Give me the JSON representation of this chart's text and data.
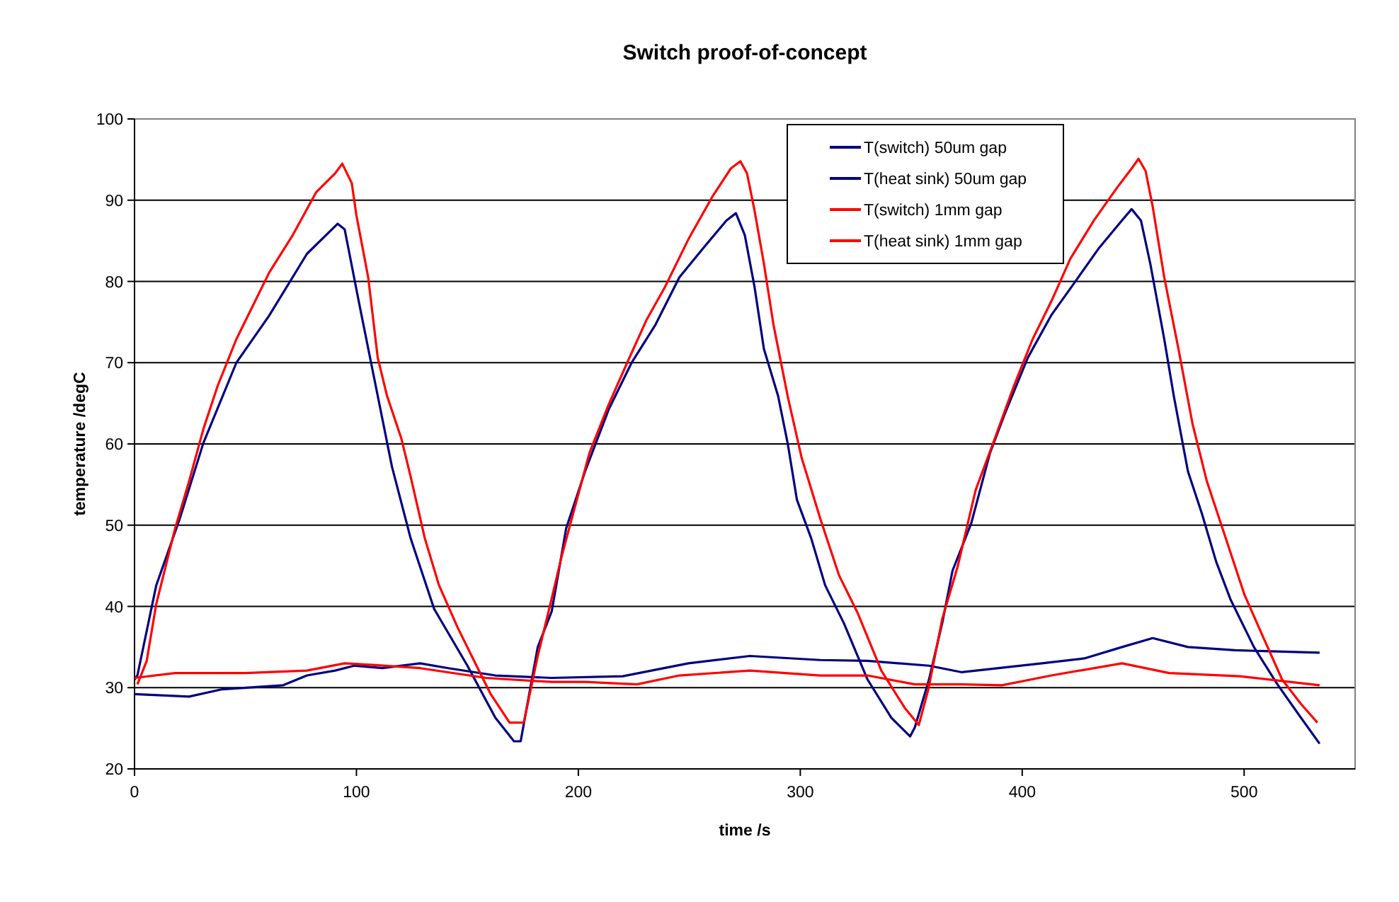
{
  "chart_data": {
    "type": "line",
    "title": "Switch proof-of-concept",
    "xlabel": "time /s",
    "ylabel": "temperature /degC",
    "xlim": [
      0,
      550
    ],
    "xticks": [
      0,
      100,
      200,
      300,
      400,
      500
    ],
    "ylim": [
      20,
      100
    ],
    "yticks": [
      20,
      30,
      40,
      50,
      60,
      70,
      80,
      90,
      100
    ],
    "grid": "y",
    "legend": "top right",
    "marker": "none",
    "line_style": "solid",
    "series": [
      {
        "name": "T(switch) 50um gap",
        "color": "#000080",
        "x": [
          0,
          1.3,
          9.8,
          20.4,
          31,
          45.9,
          60.7,
          77.7,
          91.5,
          94.7,
          101,
          109.6,
          116,
          124.4,
          135,
          150,
          162.6,
          171,
          174,
          181.7,
          188,
          194.5,
          203,
          213.6,
          224,
          234.8,
          245.5,
          256,
          266.7,
          271,
          275,
          279.4,
          283.6,
          290,
          294.3,
          298.5,
          304.9,
          311.2,
          319.7,
          330.3,
          341,
          349.5,
          351.6,
          358,
          364,
          368.6,
          377,
          385.5,
          392,
          402.5,
          413,
          423.7,
          434.3,
          444.9,
          449.3,
          453.5,
          457.7,
          464,
          468.3,
          474.7,
          481,
          487.4,
          493.8,
          504.4,
          515,
          525.6,
          534
        ],
        "values": [
          31,
          31.5,
          42.6,
          50.8,
          60.1,
          70,
          75.8,
          83.4,
          87.1,
          86.4,
          77.6,
          65.9,
          57.2,
          48.4,
          39.7,
          32.7,
          26.3,
          23.4,
          23.4,
          35,
          39.4,
          49.6,
          56.6,
          64.2,
          70,
          74.7,
          80.5,
          84,
          87.5,
          88.4,
          85.7,
          79.3,
          71.7,
          65.9,
          60.1,
          53.1,
          48.4,
          42.6,
          37.9,
          31,
          26.3,
          24,
          25.1,
          31,
          38,
          44.4,
          50.2,
          58.9,
          63.6,
          70.6,
          75.8,
          79.9,
          84,
          87.5,
          88.9,
          87.5,
          82.2,
          72.9,
          65.9,
          56.6,
          51.4,
          45.5,
          40.9,
          35,
          30.4,
          26.3,
          23.1
        ]
      },
      {
        "name": "T(heat sink) 50um gap",
        "color": "#000080",
        "x": [
          0,
          24.6,
          39.5,
          67,
          77.7,
          90.4,
          99,
          111.7,
          128.7,
          141.4,
          162.6,
          188,
          220,
          249.6,
          277.3,
          309,
          330.3,
          358,
          372.8,
          408.9,
          428,
          445,
          458.8,
          474.7,
          495.9,
          534
        ],
        "values": [
          29.2,
          28.9,
          29.8,
          30.3,
          31.5,
          32.1,
          32.7,
          32.4,
          33,
          32.4,
          31.5,
          31.2,
          31.4,
          33,
          33.9,
          33.4,
          33.3,
          32.7,
          31.9,
          33,
          33.6,
          35,
          36.1,
          35,
          34.6,
          34.3
        ]
      },
      {
        "name": "T(switch) 1mm gap",
        "color": "#ff0000",
        "x": [
          1.3,
          5.5,
          9.8,
          18.3,
          24.6,
          31,
          37.4,
          45.9,
          54.4,
          60.7,
          71.3,
          81.9,
          90.4,
          93.6,
          97.9,
          100,
          105.3,
          109.6,
          113.8,
          120.2,
          124.4,
          130.8,
          137.2,
          145.6,
          154.1,
          160.5,
          169,
          175.4,
          181.7,
          188,
          192.4,
          198.7,
          205,
          213.6,
          222,
          230.6,
          239,
          249.6,
          260.3,
          268.7,
          273,
          276,
          279.4,
          283.6,
          287.9,
          294.3,
          300.6,
          309,
          317.5,
          326,
          336.5,
          347.1,
          353.4,
          357.7,
          364,
          370.9,
          379,
          387.7,
          396.2,
          404.7,
          413.2,
          421.7,
          432.3,
          442.9,
          449.3,
          452.4,
          455.6,
          458.8,
          464,
          470.4,
          476.8,
          483.2,
          491.7,
          500.2,
          508.6,
          517.1,
          525.6,
          533
        ],
        "values": [
          30.4,
          33.3,
          40.3,
          49.6,
          55.4,
          61.8,
          67.1,
          72.9,
          77.6,
          81.1,
          85.7,
          91,
          93.3,
          94.5,
          92.1,
          88.1,
          80.5,
          70.6,
          65.9,
          60.7,
          56,
          48.4,
          42.6,
          37.4,
          32.7,
          29.2,
          25.7,
          25.7,
          33.9,
          41,
          46.1,
          52.5,
          58.9,
          64.8,
          70,
          75.2,
          79.3,
          85.2,
          90.4,
          93.9,
          94.8,
          93.3,
          88.7,
          82.2,
          74.7,
          65.9,
          58.3,
          50.8,
          43.8,
          39.1,
          32.1,
          27.5,
          25.4,
          29.8,
          38.5,
          44.9,
          54.3,
          60.7,
          67.1,
          72.9,
          77.6,
          82.8,
          87.5,
          91.6,
          93.9,
          95.1,
          93.6,
          89.2,
          80.5,
          71.7,
          62.4,
          55.4,
          48.4,
          41.4,
          36.2,
          31,
          28,
          25.7
        ]
      },
      {
        "name": "T(heat sink) 1mm gap",
        "color": "#ff0000",
        "x": [
          0,
          18.3,
          50,
          77.7,
          94.7,
          107.4,
          128.7,
          158.4,
          188,
          203,
          226.3,
          245.5,
          277.3,
          309,
          330.3,
          351.6,
          372.8,
          390.9,
          413.2,
          445,
          466.2,
          498,
          534
        ],
        "values": [
          31.2,
          31.8,
          31.8,
          32.1,
          33,
          32.8,
          32.4,
          31.2,
          30.7,
          30.7,
          30.4,
          31.5,
          32.1,
          31.5,
          31.5,
          30.4,
          30.4,
          30.3,
          31.5,
          33,
          31.8,
          31.4,
          30.3
        ]
      }
    ]
  }
}
